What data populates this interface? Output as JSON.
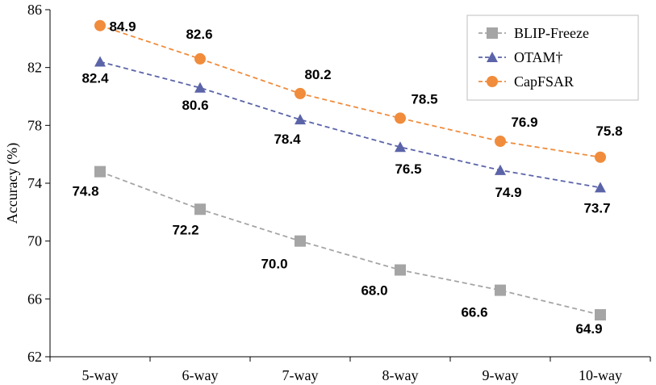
{
  "chart_data": {
    "type": "line",
    "title": "",
    "xlabel": "",
    "ylabel": "Accuracy (%)",
    "ylim": [
      62,
      86
    ],
    "yticks": [
      "62",
      "66",
      "70",
      "74",
      "78",
      "82",
      "86"
    ],
    "categories": [
      "5-way",
      "6-way",
      "7-way",
      "8-way",
      "9-way",
      "10-way"
    ],
    "legend_position": "top-right",
    "series": [
      {
        "name": "BLIP-Freeze",
        "marker": "square",
        "color": "#a5a5a5",
        "values": [
          74.8,
          72.2,
          70.0,
          68.0,
          66.6,
          64.9
        ],
        "labels": [
          "74.8",
          "72.2",
          "70.0",
          "68.0",
          "66.6",
          "64.9"
        ]
      },
      {
        "name": "OTAM†",
        "marker": "triangle",
        "color": "#5b64a8",
        "values": [
          82.4,
          80.6,
          78.4,
          76.5,
          74.9,
          73.7
        ],
        "labels": [
          "82.4",
          "80.6",
          "78.4",
          "76.5",
          "74.9",
          "73.7"
        ]
      },
      {
        "name": "CapFSAR",
        "marker": "circle",
        "color": "#f08c3c",
        "values": [
          84.9,
          82.6,
          80.2,
          78.5,
          76.9,
          75.8
        ],
        "labels": [
          "84.9",
          "82.6",
          "80.2",
          "78.5",
          "76.9",
          "75.8"
        ]
      }
    ]
  }
}
